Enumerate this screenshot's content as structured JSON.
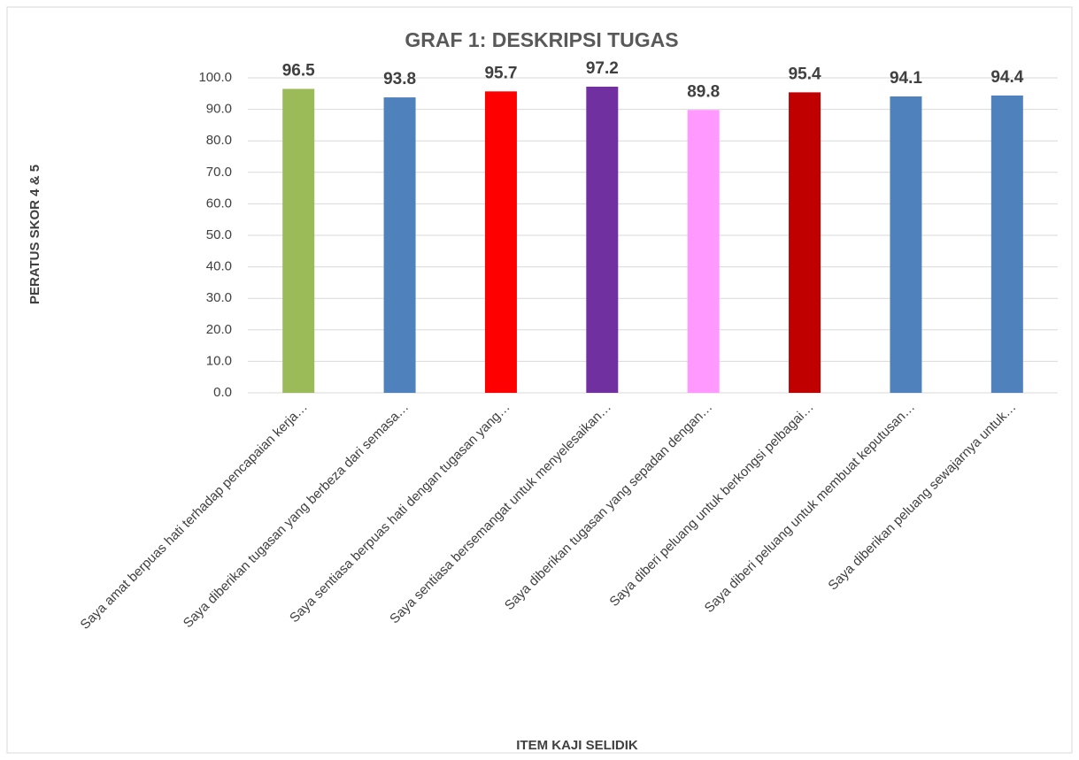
{
  "chart_data": {
    "type": "bar",
    "title": "GRAF 1: DESKRIPSI TUGAS",
    "y_label": "PERATUS SKOR 4 & 5",
    "x_label": "ITEM KAJI SELIDIK",
    "categories": [
      "Saya amat berpuas hati terhadap pencapaian kerja…",
      "Saya diberikan tugasan yang berbeza dari semasa…",
      "Saya sentiasa berpuas hati dengan tugasan yang…",
      "Saya sentiasa bersemangat untuk menyelesaikan…",
      "Saya diberikan tugasan yang sepadan dengan…",
      "Saya diberi peluang untuk berkongsi pelbagai…",
      "Saya diberi peluang untuk membuat keputusan…",
      "Saya diberikan peluang sewajarnya untuk…"
    ],
    "values": [
      96.5,
      93.8,
      95.7,
      97.2,
      89.8,
      95.4,
      94.1,
      94.4
    ],
    "colors": [
      "#9bbb59",
      "#4f81bd",
      "#ff0000",
      "#7030a0",
      "#ff99ff",
      "#c00000",
      "#4f81bd",
      "#4f81bd"
    ],
    "ylim": [
      0,
      100
    ],
    "yticks": [
      {
        "value": 0,
        "label": "0.0"
      },
      {
        "value": 10,
        "label": "10.0"
      },
      {
        "value": 20,
        "label": "20.0"
      },
      {
        "value": 30,
        "label": "30.0"
      },
      {
        "value": 40,
        "label": "40.0"
      },
      {
        "value": 50,
        "label": "50.0"
      },
      {
        "value": 60,
        "label": "60.0"
      },
      {
        "value": 70,
        "label": "70.0"
      },
      {
        "value": 80,
        "label": "80.0"
      },
      {
        "value": 90,
        "label": "90.0"
      },
      {
        "value": 100,
        "label": "100.0"
      }
    ],
    "grid": true
  }
}
